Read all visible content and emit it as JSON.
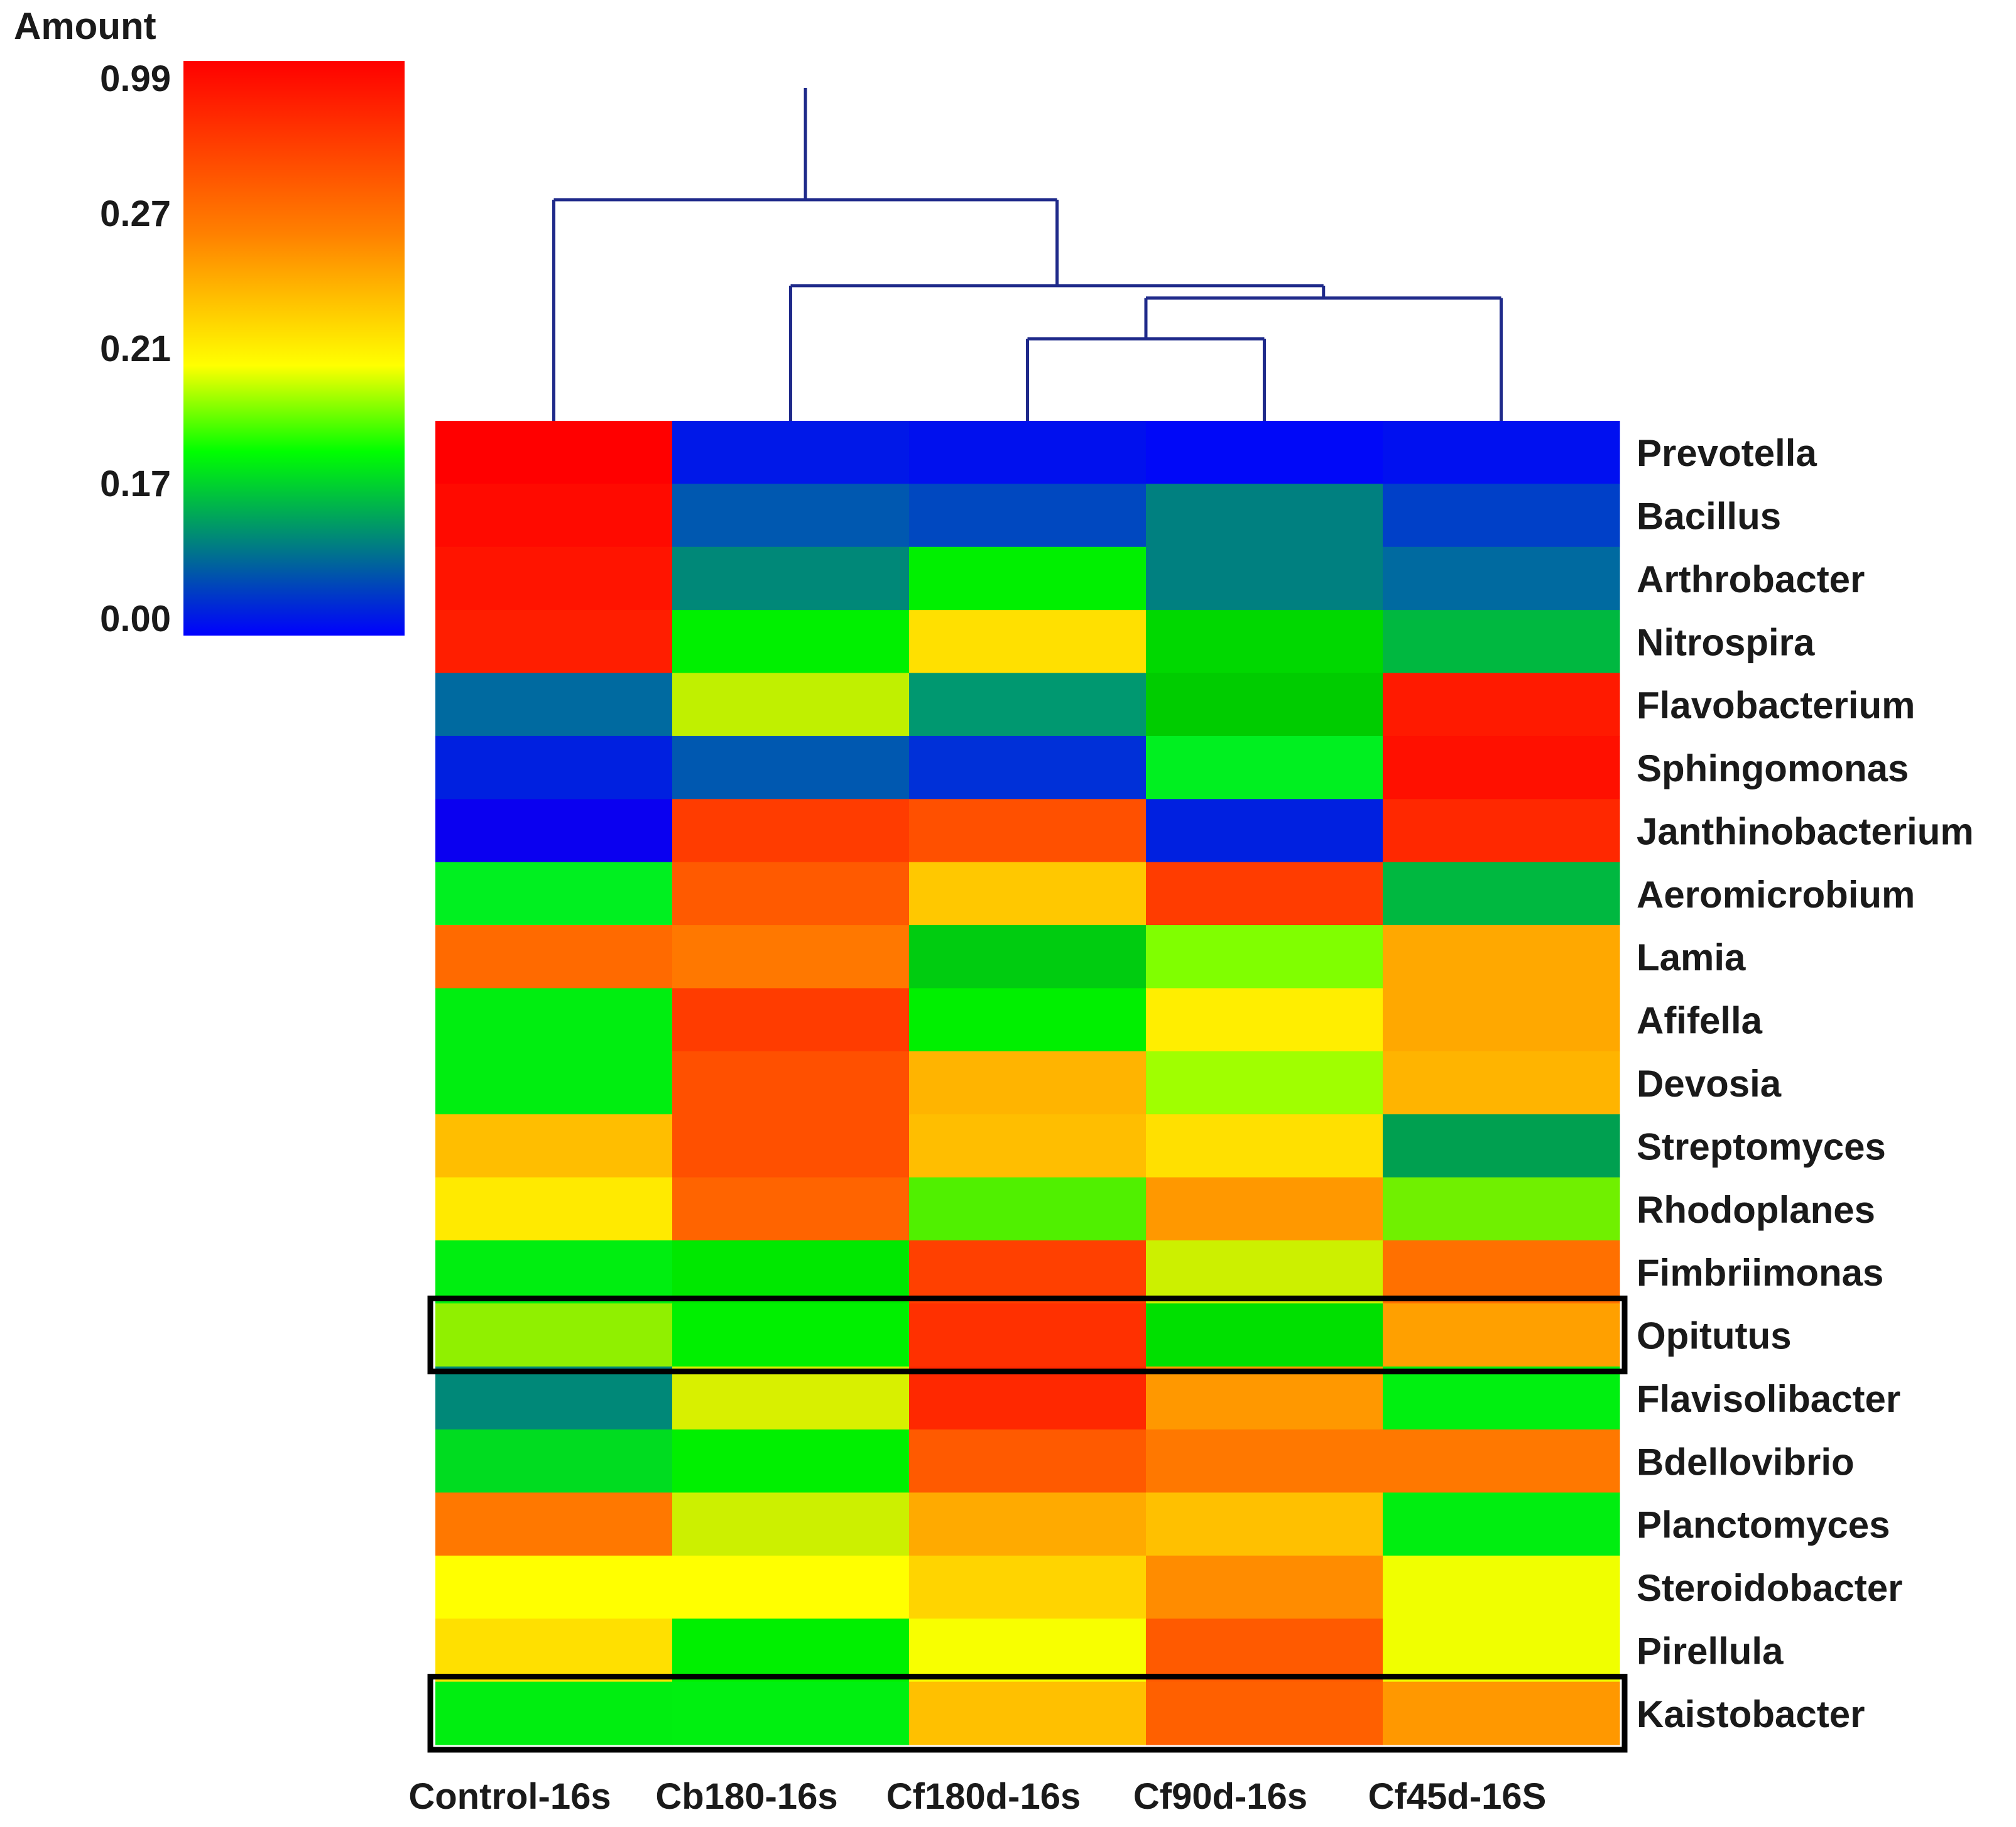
{
  "chart_data": {
    "type": "heatmap",
    "title": "",
    "legend": {
      "title": "Amount",
      "ticks": [
        "0.99",
        "0.27",
        "0.21",
        "0.17",
        "0.00"
      ],
      "gradient_colors": [
        "#ff0000",
        "#ff8000",
        "#ffff00",
        "#00ff00",
        "#008080",
        "#0000ff"
      ]
    },
    "columns": [
      "Control-16s",
      "Cb180-16s",
      "Cf180d-16s",
      "Cf90d-16s",
      "Cf45d-16S"
    ],
    "rows": [
      "Prevotella",
      "Bacillus",
      "Arthrobacter",
      "Nitrospira",
      "Flavobacterium",
      "Sphingomonas",
      "Janthinobacterium",
      "Aeromicrobium",
      "Lamia",
      "Afifella",
      "Devosia",
      "Streptomyces",
      "Rhodoplanes",
      "Fimbriimonas",
      "Opitutus",
      "Flavisolibacter",
      "Bdellovibrio",
      "Planctomyces",
      "Steroidobacter",
      "Pirellula",
      "Kaistobacter"
    ],
    "cell_colors": [
      [
        "#ff0000",
        "#0018e8",
        "#0010ee",
        "#0008f8",
        "#0010f0"
      ],
      [
        "#ff0a00",
        "#0058b0",
        "#0048c0",
        "#008080",
        "#0040c8"
      ],
      [
        "#ff1400",
        "#008878",
        "#00f000",
        "#008080",
        "#006aa0"
      ],
      [
        "#ff1e00",
        "#00f000",
        "#ffe000",
        "#00d800",
        "#00b840"
      ],
      [
        "#006aa0",
        "#c0f000",
        "#009870",
        "#00cc00",
        "#ff1a00"
      ],
      [
        "#0020e0",
        "#0058b0",
        "#0030d8",
        "#00f020",
        "#ff1000"
      ],
      [
        "#0a00f0",
        "#ff3c00",
        "#ff5000",
        "#0020e0",
        "#ff2800"
      ],
      [
        "#00f020",
        "#ff5a00",
        "#ffc800",
        "#ff3c00",
        "#00b840"
      ],
      [
        "#ff6a00",
        "#ff7800",
        "#00cc10",
        "#80ff00",
        "#ffa800"
      ],
      [
        "#00ee10",
        "#ff3c00",
        "#00f000",
        "#ffee00",
        "#ffa800"
      ],
      [
        "#00ee10",
        "#ff5000",
        "#ffb400",
        "#a0ff00",
        "#ffb400"
      ],
      [
        "#ffbe00",
        "#ff5000",
        "#ffbe00",
        "#ffe000",
        "#00a050"
      ],
      [
        "#ffea00",
        "#ff6400",
        "#50f000",
        "#ff9800",
        "#70f000"
      ],
      [
        "#00ee10",
        "#00e800",
        "#ff4000",
        "#ccf000",
        "#ff7000"
      ],
      [
        "#90f000",
        "#00f000",
        "#ff3000",
        "#00e000",
        "#ffa000"
      ],
      [
        "#008878",
        "#d8f000",
        "#ff2800",
        "#ff9800",
        "#00f010"
      ],
      [
        "#00dc20",
        "#00f000",
        "#ff5a00",
        "#ff7800",
        "#ff7800"
      ],
      [
        "#ff7800",
        "#ccf000",
        "#ffaa00",
        "#ffc000",
        "#00ee10"
      ],
      [
        "#ffff00",
        "#ffff00",
        "#ffd400",
        "#ff8c00",
        "#f0ff00"
      ],
      [
        "#ffe000",
        "#00f000",
        "#f8ff00",
        "#ff5a00",
        "#f0ff00"
      ],
      [
        "#00ee10",
        "#00f010",
        "#ffc000",
        "#ff6000",
        "#ff9800"
      ]
    ],
    "highlighted_rows": [
      "Opitutus",
      "Kaistobacter"
    ],
    "dendrogram": {
      "leaf_order": [
        "Control-16s",
        "Cb180-16s",
        "Cf180d-16s",
        "Cf90d-16s",
        "Cf45d-16S"
      ],
      "merges": [
        {
          "left": "Cf180d-16s",
          "right": "Cf90d-16s",
          "height": 1.0
        },
        {
          "left": "(Cf180d-16s,Cf90d-16s)",
          "right": "Cf45d-16S",
          "height": 1.5
        },
        {
          "left": "Cb180-16s",
          "right": "(Cf180d-16s,Cf90d-16s,Cf45d-16S)",
          "height": 1.65
        },
        {
          "left": "Control-16s",
          "right": "(Cb180-16s,Cf180d-16s,Cf90d-16s,Cf45d-16S)",
          "height": 2.7
        }
      ],
      "line_color": "#1f2a8a"
    }
  }
}
